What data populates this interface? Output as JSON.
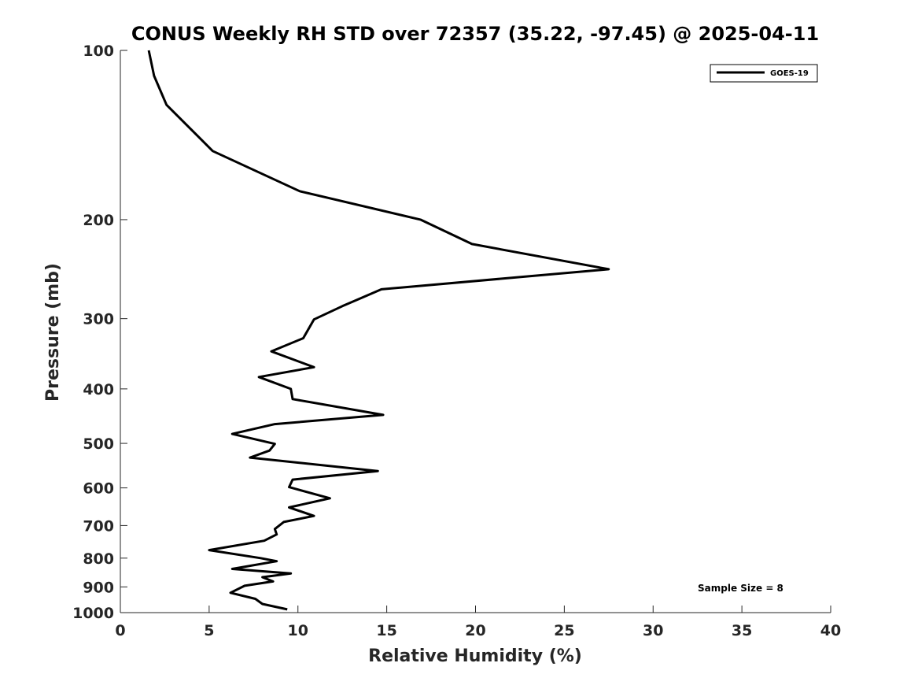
{
  "chart_data": {
    "type": "line",
    "title": "CONUS Weekly RH STD over 72357 (35.22, -97.45) @ 2025-04-11",
    "xlabel": "Relative Humidity (%)",
    "ylabel": "Pressure (mb)",
    "xlim": [
      0,
      40
    ],
    "ylim": [
      1000,
      100
    ],
    "y_scale": "log",
    "x_ticks": [
      0,
      5,
      10,
      15,
      20,
      25,
      30,
      35,
      40
    ],
    "y_ticks": [
      100,
      200,
      300,
      400,
      500,
      600,
      700,
      800,
      900,
      1000
    ],
    "grid": false,
    "legend": {
      "position": "top-right",
      "entries": [
        "GOES-19"
      ]
    },
    "annotations": [
      "Sample Size = 8"
    ],
    "series": [
      {
        "name": "GOES-19",
        "color": "#000000",
        "x": [
          1.6,
          1.9,
          2.6,
          5.2,
          10.1,
          16.9,
          19.8,
          27.5,
          14.7,
          12.5,
          10.9,
          10.3,
          8.5,
          10.9,
          7.8,
          9.6,
          9.7,
          14.8,
          8.7,
          6.3,
          8.7,
          8.4,
          7.3,
          14.5,
          9.7,
          9.5,
          11.8,
          9.5,
          10.9,
          9.2,
          8.7,
          8.8,
          8.1,
          5.0,
          7.9,
          8.8,
          6.3,
          9.6,
          8.0,
          8.6,
          7.0,
          6.2,
          7.6,
          8.0,
          9.4
        ],
        "y": [
          100,
          111,
          125,
          151,
          178,
          200,
          221,
          245,
          266,
          285,
          301,
          325,
          343,
          366,
          381,
          400,
          417,
          445,
          462,
          481,
          501,
          515,
          530,
          560,
          580,
          598,
          626,
          650,
          673,
          690,
          710,
          726,
          745,
          774,
          800,
          810,
          836,
          852,
          865,
          880,
          896,
          922,
          945,
          965,
          987
        ]
      }
    ]
  }
}
